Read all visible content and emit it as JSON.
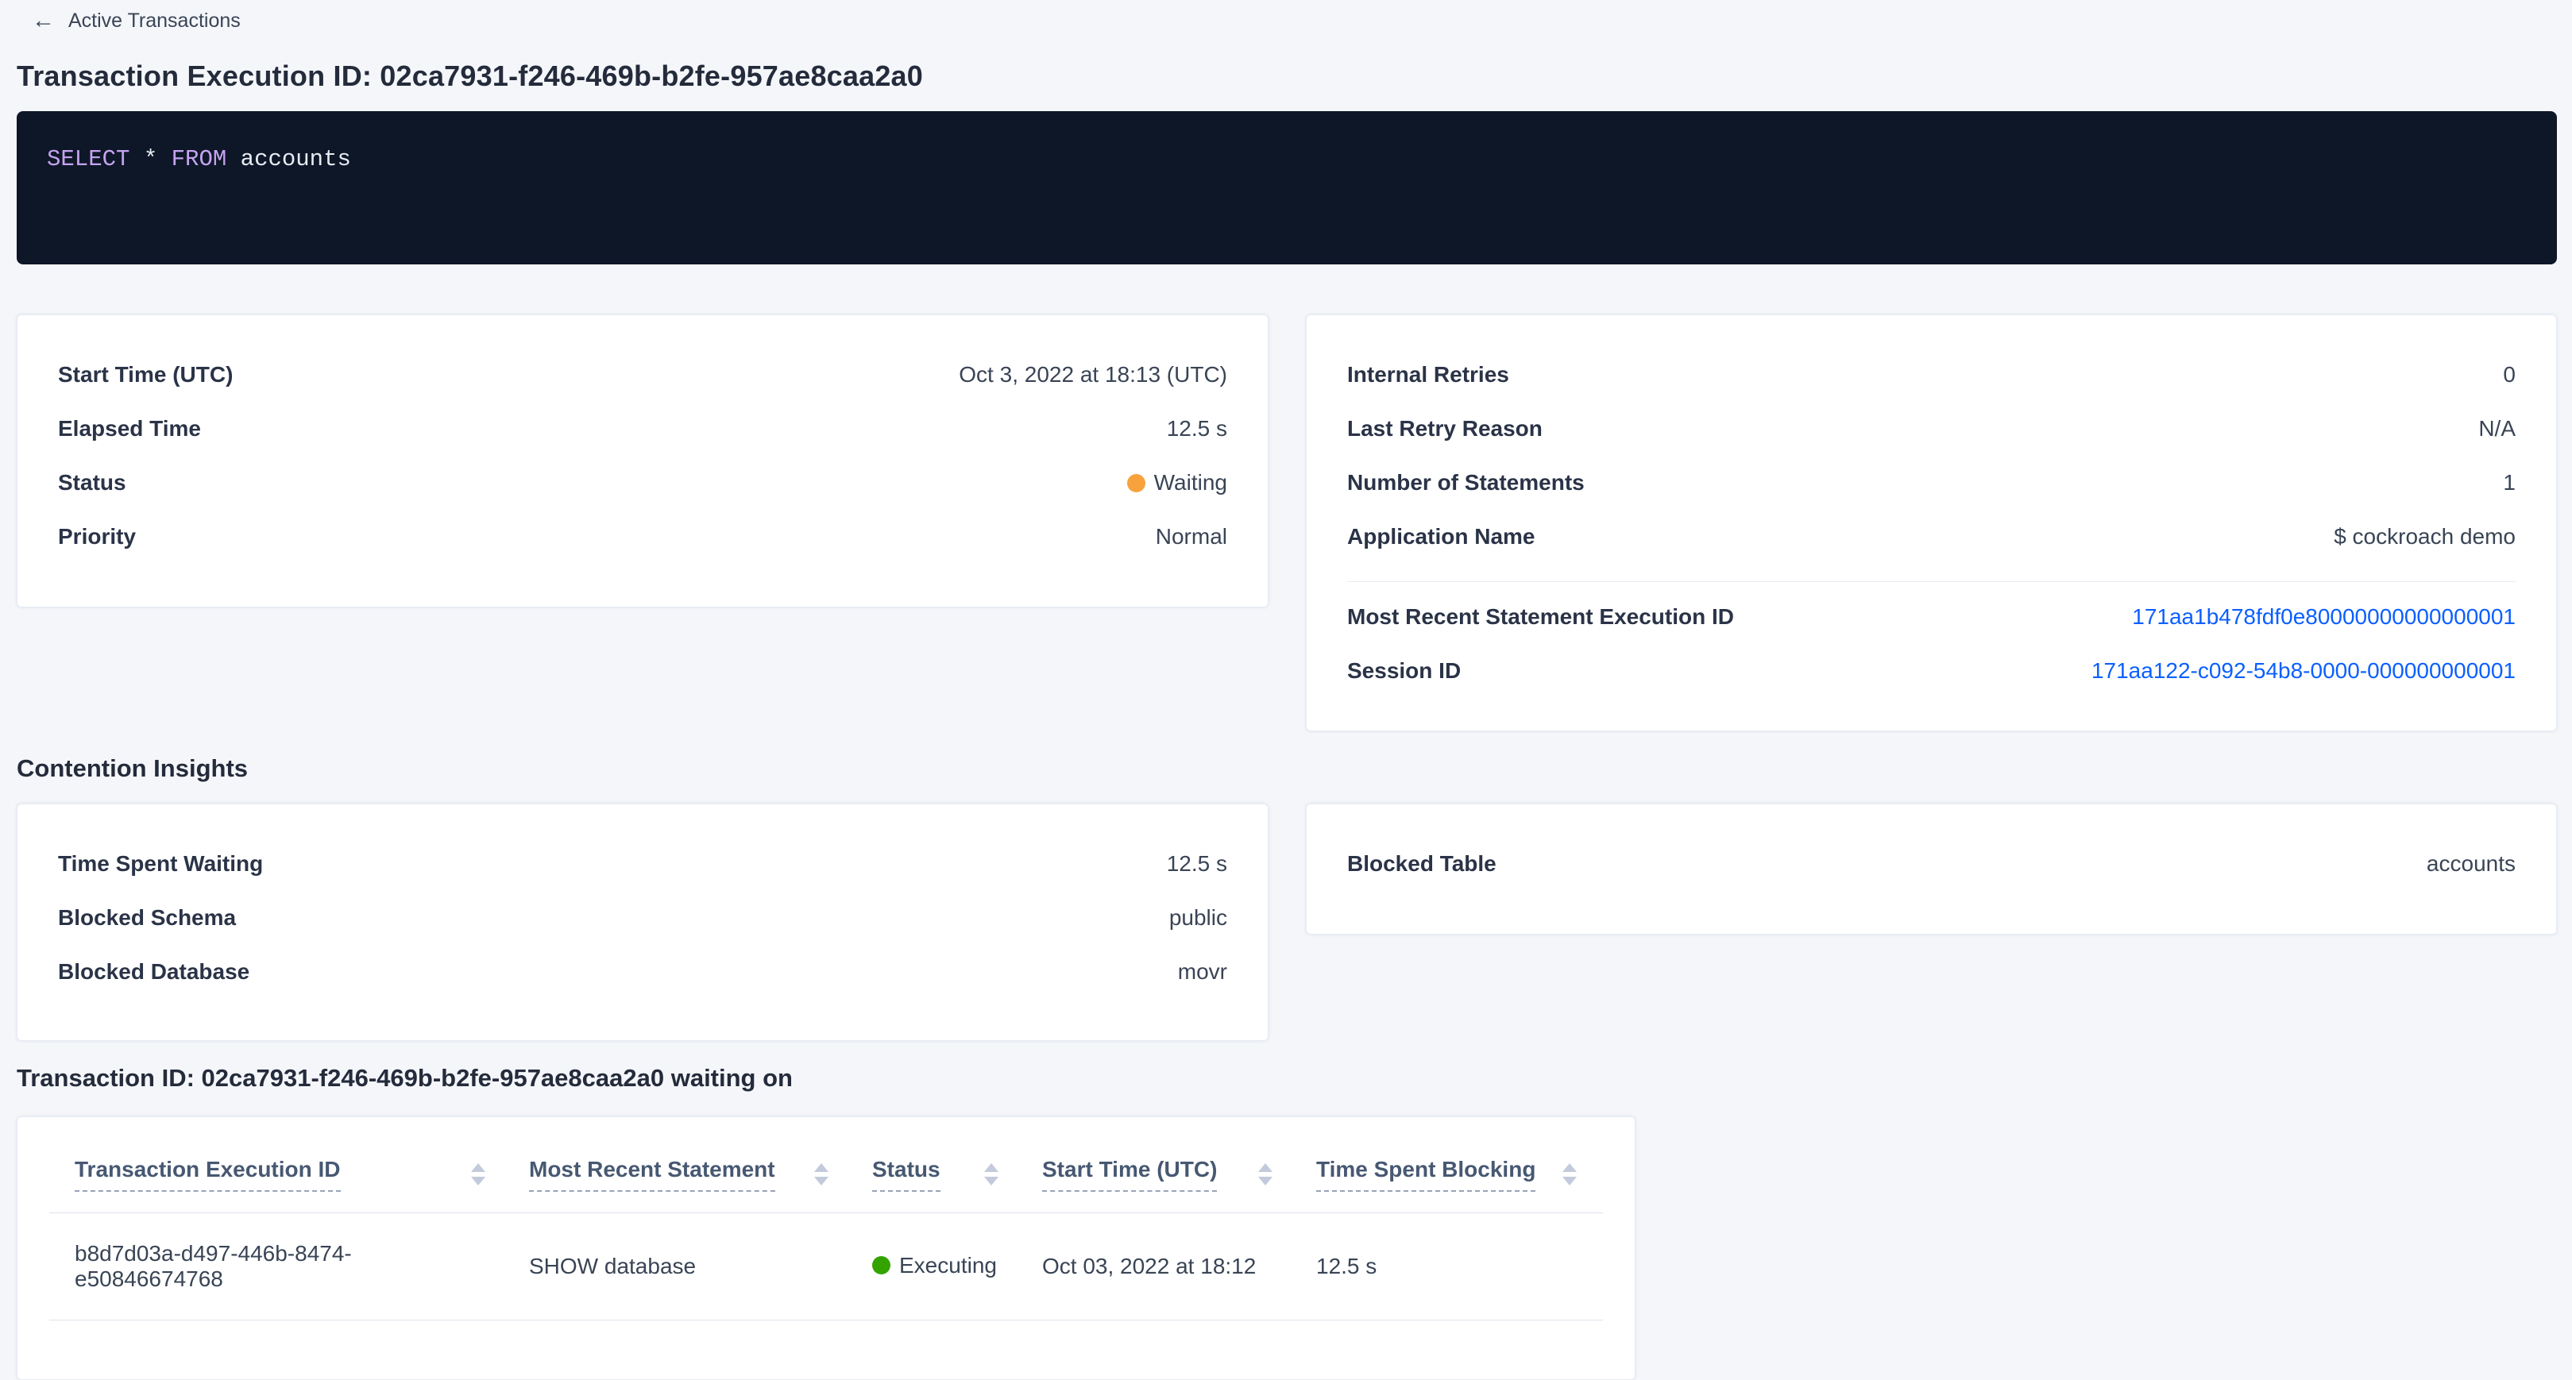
{
  "colors": {
    "link_blue": "#0b5fff",
    "status_waiting": "#f7a23c",
    "status_executing": "#33a300",
    "sql_bg": "#0e1728",
    "sql_keyword": "#c5a3f0",
    "sql_text": "#e7ecf3"
  },
  "icons": {
    "back_arrow": "←"
  },
  "header": {
    "back_label": "Active Transactions",
    "title": "Transaction Execution ID: 02ca7931-f246-469b-b2fe-957ae8caa2a0"
  },
  "sql": {
    "tokens": [
      {
        "text": "SELECT",
        "type": "keyword"
      },
      {
        "text": " * ",
        "type": "plain"
      },
      {
        "text": "FROM",
        "type": "keyword"
      },
      {
        "text": " accounts",
        "type": "plain"
      }
    ]
  },
  "transaction_details": {
    "left": {
      "rows": [
        {
          "label": "Start Time (UTC)",
          "value": "Oct 3, 2022 at 18:13 (UTC)"
        },
        {
          "label": "Elapsed Time",
          "value": "12.5 s"
        },
        {
          "label": "Status",
          "value": "Waiting"
        },
        {
          "label": "Priority",
          "value": "Normal"
        }
      ]
    },
    "right": {
      "rows": [
        {
          "label": "Internal Retries",
          "value": "0"
        },
        {
          "label": "Last Retry Reason",
          "value": "N/A"
        },
        {
          "label": "Number of Statements",
          "value": "1"
        },
        {
          "label": "Application Name",
          "value": "$ cockroach demo"
        }
      ],
      "links": [
        {
          "label": "Most Recent Statement Execution ID",
          "value": "171aa1b478fdf0e80000000000000001"
        },
        {
          "label": "Session ID",
          "value": "171aa122-c092-54b8-0000-000000000001"
        }
      ]
    }
  },
  "contention": {
    "heading": "Contention Insights",
    "left": {
      "rows": [
        {
          "label": "Time Spent Waiting",
          "value": "12.5 s"
        },
        {
          "label": "Blocked Schema",
          "value": "public"
        },
        {
          "label": "Blocked Database",
          "value": "movr"
        }
      ]
    },
    "right": {
      "rows": [
        {
          "label": "Blocked Table",
          "value": "accounts"
        }
      ]
    }
  },
  "waiting_on": {
    "heading": "Transaction ID: 02ca7931-f246-469b-b2fe-957ae8caa2a0 waiting on",
    "table": {
      "columns": [
        "Transaction Execution ID",
        "Most Recent Statement",
        "Status",
        "Start Time (UTC)",
        "Time Spent Blocking"
      ],
      "rows": [
        {
          "transaction_execution_id": "b8d7d03a-d497-446b-8474-e50846674768",
          "most_recent_statement": "SHOW database",
          "status": "Executing",
          "start_time": "Oct 03, 2022 at 18:12",
          "time_spent_blocking": "12.5 s"
        }
      ]
    }
  }
}
